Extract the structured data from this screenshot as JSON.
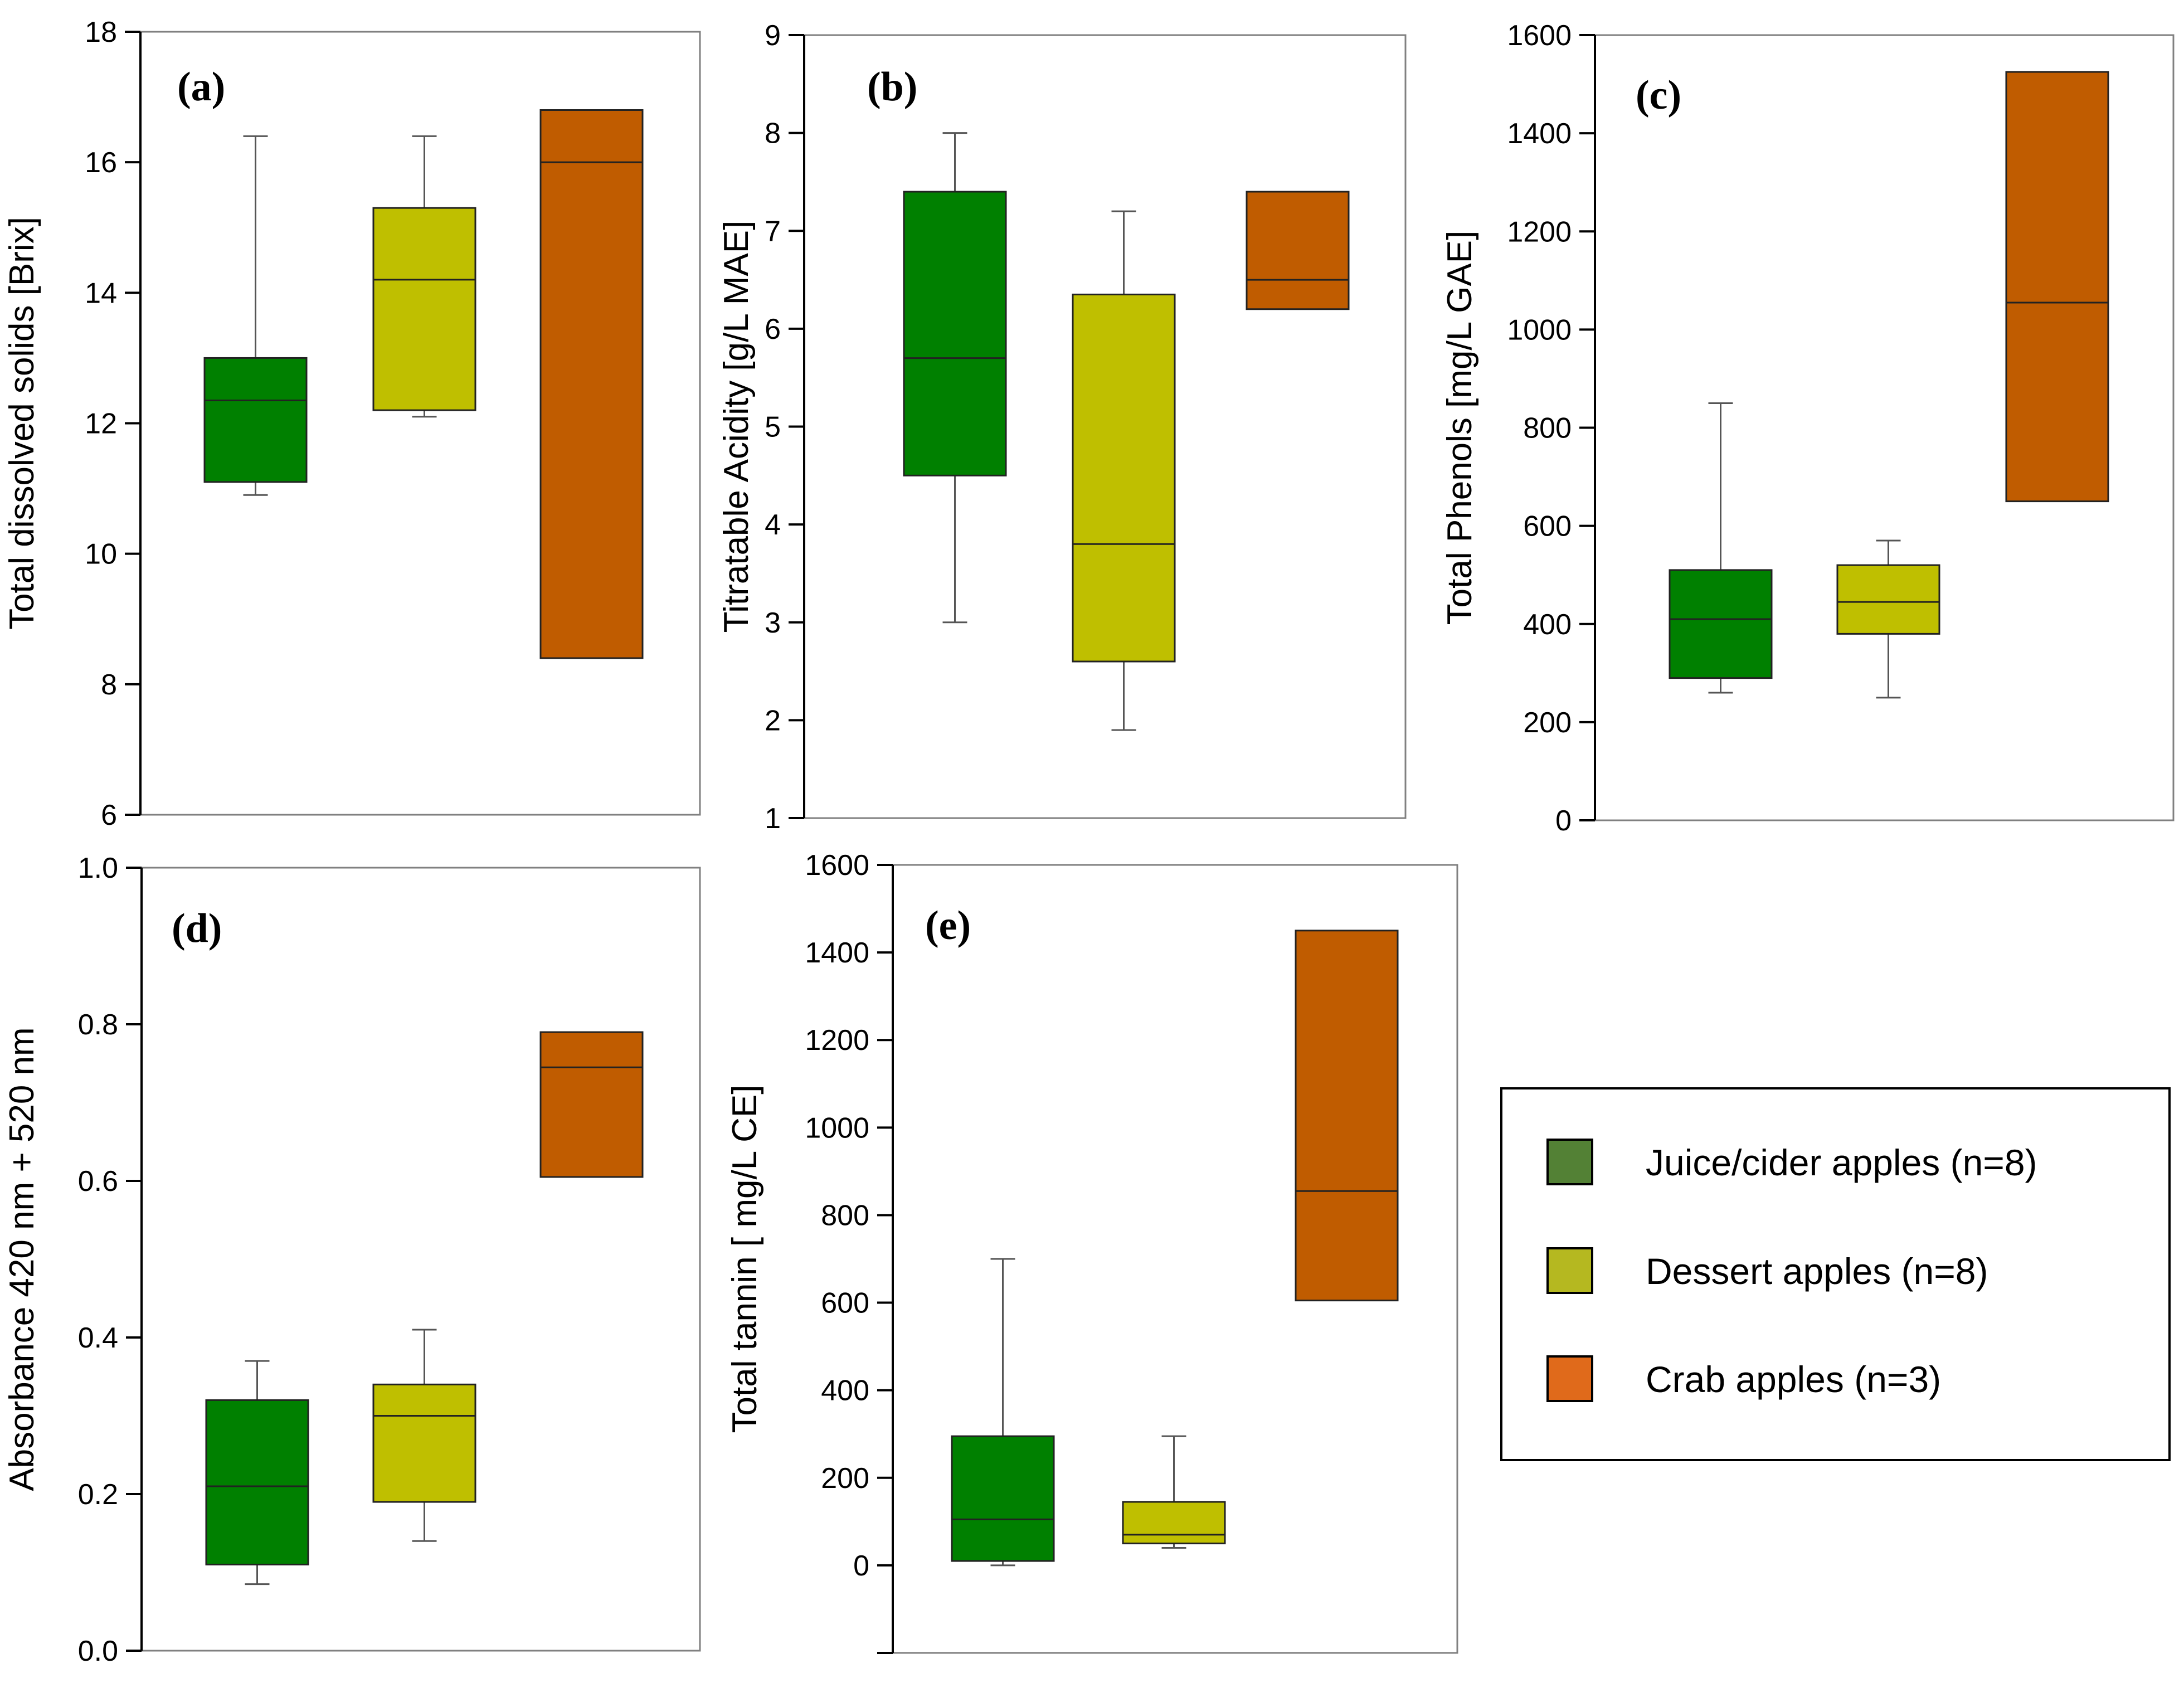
{
  "chart_data": [
    {
      "type": "box",
      "panel": "(a)",
      "ylabel": "Total dissolved solids [Brix]",
      "ylim": [
        6,
        18
      ],
      "yticks": [
        6,
        8,
        10,
        12,
        14,
        16,
        18
      ],
      "boxes": [
        {
          "series": "Juice/cider apples (n=8)",
          "min": 10.9,
          "q1": 11.1,
          "median": 12.35,
          "q3": 13.0,
          "max": 16.4
        },
        {
          "series": "Dessert apples (n=8)",
          "min": 12.1,
          "q1": 12.2,
          "median": 14.2,
          "q3": 15.3,
          "max": 16.4
        },
        {
          "series": "Crab apples (n=3)",
          "min": 8.4,
          "q1": 8.4,
          "median": 16.0,
          "q3": 16.8,
          "max": 16.8
        }
      ]
    },
    {
      "type": "box",
      "panel": "(b)",
      "ylabel": "Titratable Acidity [g/L MAE]",
      "ylim": [
        1,
        9
      ],
      "yticks": [
        1,
        2,
        3,
        4,
        5,
        6,
        7,
        8,
        9
      ],
      "boxes": [
        {
          "series": "Juice/cider apples (n=8)",
          "min": 3.0,
          "q1": 4.5,
          "median": 5.7,
          "q3": 7.4,
          "max": 8.0
        },
        {
          "series": "Dessert apples (n=8)",
          "min": 1.9,
          "q1": 2.6,
          "median": 3.8,
          "q3": 6.35,
          "max": 7.2
        },
        {
          "series": "Crab apples (n=3)",
          "min": 6.2,
          "q1": 6.2,
          "median": 6.5,
          "q3": 7.4,
          "max": 7.4
        }
      ]
    },
    {
      "type": "box",
      "panel": "(c)",
      "ylabel": "Total Phenols [mg/L GAE]",
      "ylim": [
        0,
        1600
      ],
      "yticks": [
        0,
        200,
        400,
        600,
        800,
        1000,
        1200,
        1400,
        1600
      ],
      "boxes": [
        {
          "series": "Juice/cider apples (n=8)",
          "min": 260,
          "q1": 290,
          "median": 410,
          "q3": 510,
          "max": 850
        },
        {
          "series": "Dessert apples (n=8)",
          "min": 250,
          "q1": 380,
          "median": 445,
          "q3": 520,
          "max": 570
        },
        {
          "series": "Crab apples (n=3)",
          "min": 650,
          "q1": 650,
          "median": 1055,
          "q3": 1525,
          "max": 1525
        }
      ]
    },
    {
      "type": "box",
      "panel": "(d)",
      "ylabel": "Absorbance 420 nm + 520 nm",
      "ylim": [
        0.0,
        1.0
      ],
      "yticks": [
        "0.0",
        "0.2",
        "0.4",
        "0.6",
        "0.8",
        "1.0"
      ],
      "boxes": [
        {
          "series": "Juice/cider apples (n=8)",
          "min": 0.085,
          "q1": 0.11,
          "median": 0.21,
          "q3": 0.32,
          "max": 0.37
        },
        {
          "series": "Dessert apples (n=8)",
          "min": 0.14,
          "q1": 0.19,
          "median": 0.3,
          "q3": 0.34,
          "max": 0.41
        },
        {
          "series": "Crab apples (n=3)",
          "min": 0.605,
          "q1": 0.605,
          "median": 0.745,
          "q3": 0.79,
          "max": 0.79
        }
      ]
    },
    {
      "type": "box",
      "panel": "(e)",
      "ylabel": "Total tannin [ mg/L CE]",
      "ylim": [
        -200,
        1600
      ],
      "yticks": [
        0,
        200,
        400,
        600,
        800,
        1000,
        1200,
        1400,
        1600
      ],
      "boxes": [
        {
          "series": "Juice/cider apples (n=8)",
          "min": 0,
          "q1": 10,
          "median": 105,
          "q3": 295,
          "max": 700
        },
        {
          "series": "Dessert apples (n=8)",
          "min": 40,
          "q1": 50,
          "median": 70,
          "q3": 145,
          "max": 295
        },
        {
          "series": "Crab apples (n=3)",
          "min": 605,
          "q1": 605,
          "median": 855,
          "q3": 1450,
          "max": 1450
        }
      ]
    }
  ],
  "legend": {
    "placement": "bottom-right",
    "items": [
      {
        "label": "Juice/cider apples (n=8)",
        "color": "#538135"
      },
      {
        "label": "Dessert apples (n=8)",
        "color": "#b5b820"
      },
      {
        "label": "Crab apples (n=3)",
        "color": "#e06a1b"
      }
    ]
  },
  "colors": {
    "Juice/cider apples (n=8)": "#008000",
    "Dessert apples (n=8)": "#bfbf00",
    "Crab apples (n=3)": "#c05c00"
  }
}
